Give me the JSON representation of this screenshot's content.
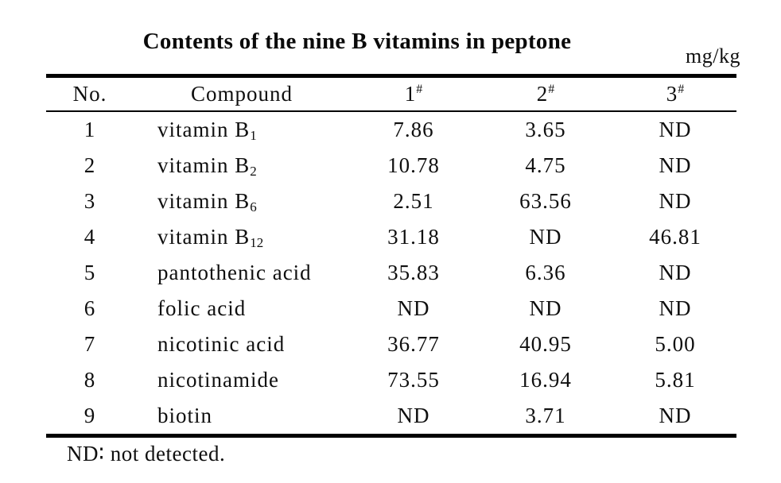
{
  "title": "Contents of the nine B vitamins in peptone",
  "unit": "mg/kg",
  "footnote": "ND∶ not detected.",
  "colors": {
    "text": "#0f0f0f",
    "rule": "#000000",
    "background": "#ffffff"
  },
  "table": {
    "columns": [
      {
        "label": "No.",
        "sup": ""
      },
      {
        "label": "Compound",
        "sup": ""
      },
      {
        "label": "1",
        "sup": "#"
      },
      {
        "label": "2",
        "sup": "#"
      },
      {
        "label": "3",
        "sup": "#"
      }
    ],
    "rows": [
      {
        "no": "1",
        "compound": "vitamin B",
        "sub": "1",
        "values": [
          "7.86",
          "3.65",
          "ND"
        ]
      },
      {
        "no": "2",
        "compound": "vitamin B",
        "sub": "2",
        "values": [
          "10.78",
          "4.75",
          "ND"
        ]
      },
      {
        "no": "3",
        "compound": "vitamin B",
        "sub": "6",
        "values": [
          "2.51",
          "63.56",
          "ND"
        ]
      },
      {
        "no": "4",
        "compound": "vitamin B",
        "sub": "12",
        "values": [
          "31.18",
          "ND",
          "46.81"
        ]
      },
      {
        "no": "5",
        "compound": "pantothenic acid",
        "sub": "",
        "values": [
          "35.83",
          "6.36",
          "ND"
        ]
      },
      {
        "no": "6",
        "compound": "folic acid",
        "sub": "",
        "values": [
          "ND",
          "ND",
          "ND"
        ]
      },
      {
        "no": "7",
        "compound": "nicotinic acid",
        "sub": "",
        "values": [
          "36.77",
          "40.95",
          "5.00"
        ]
      },
      {
        "no": "8",
        "compound": "nicotinamide",
        "sub": "",
        "values": [
          "73.55",
          "16.94",
          "5.81"
        ]
      },
      {
        "no": "9",
        "compound": "biotin",
        "sub": "",
        "values": [
          "ND",
          "3.71",
          "ND"
        ]
      }
    ]
  }
}
